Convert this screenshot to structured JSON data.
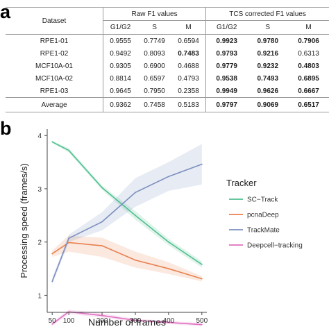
{
  "panel_labels": {
    "a": "a",
    "b": "b"
  },
  "table": {
    "dataset_header": "Dataset",
    "group_raw": "Raw F1 values",
    "group_tcs": "TCS corrected F1 values",
    "sub_headers": [
      "G1/G2",
      "S",
      "M",
      "G1/G2",
      "S",
      "M"
    ],
    "rows": [
      {
        "name": "RPE1-01",
        "values": [
          "0.9555",
          "0.7749",
          "0.6594",
          "0.9923",
          "0.9780",
          "0.7906"
        ],
        "bold": [
          false,
          false,
          false,
          true,
          true,
          true
        ]
      },
      {
        "name": "RPE1-02",
        "values": [
          "0.9492",
          "0.8093",
          "0.7483",
          "0.9793",
          "0.9216",
          "0.6313"
        ],
        "bold": [
          false,
          false,
          true,
          true,
          true,
          false
        ]
      },
      {
        "name": "MCF10A-01",
        "values": [
          "0.9305",
          "0.6900",
          "0.4688",
          "0.9779",
          "0.9232",
          "0.4803"
        ],
        "bold": [
          false,
          false,
          false,
          true,
          true,
          true
        ]
      },
      {
        "name": "MCF10A-02",
        "values": [
          "0.8814",
          "0.6597",
          "0.4793",
          "0.9538",
          "0.7493",
          "0.6895"
        ],
        "bold": [
          false,
          false,
          false,
          true,
          true,
          true
        ]
      },
      {
        "name": "RPE1-03",
        "values": [
          "0.9645",
          "0.7950",
          "0.2358",
          "0.9949",
          "0.9626",
          "0.6667"
        ],
        "bold": [
          false,
          false,
          false,
          true,
          true,
          true
        ]
      }
    ],
    "average": {
      "name": "Average",
      "values": [
        "0.9362",
        "0.7458",
        "0.5183",
        "0.9797",
        "0.9069",
        "0.6517"
      ],
      "bold": [
        false,
        false,
        false,
        true,
        true,
        true
      ]
    }
  },
  "chart_data": {
    "type": "line",
    "title": "",
    "xlabel": "Number of frames",
    "ylabel": "Processing speed (frames/s)",
    "x": [
      50,
      100,
      200,
      300,
      400,
      500
    ],
    "x_ticks": [
      50,
      100,
      200,
      300,
      400,
      500
    ],
    "y_ticks": [
      1,
      2,
      3,
      4
    ],
    "xlim": [
      35,
      515
    ],
    "ylim": [
      0.68,
      4.12
    ],
    "grid": false,
    "legend_title": "Tracker",
    "legend_position": "right",
    "series": [
      {
        "name": "SC−Track",
        "color": "#4fbf8f",
        "values": [
          3.88,
          3.72,
          3.02,
          2.5,
          2.0,
          1.58
        ],
        "band_low": [
          3.86,
          3.68,
          2.98,
          2.42,
          1.94,
          1.52
        ],
        "band_high": [
          3.9,
          3.76,
          3.06,
          2.58,
          2.06,
          1.64
        ]
      },
      {
        "name": "pcnaDeep",
        "color": "#e8804f",
        "values": [
          1.78,
          1.99,
          1.93,
          1.66,
          1.5,
          1.31
        ],
        "band_low": [
          1.72,
          1.82,
          1.72,
          1.52,
          1.4,
          1.26
        ],
        "band_high": [
          1.84,
          2.12,
          2.08,
          1.82,
          1.62,
          1.36
        ]
      },
      {
        "name": "TrackMate",
        "color": "#7b8fbf",
        "values": [
          1.26,
          2.07,
          2.38,
          2.93,
          3.23,
          3.46
        ],
        "band_low": [
          1.2,
          2.0,
          2.22,
          2.66,
          2.96,
          3.08
        ],
        "band_high": [
          1.32,
          2.14,
          2.56,
          3.2,
          3.5,
          3.84
        ]
      },
      {
        "name": "Deepcell−tracking",
        "color": "#e070c0",
        "values": [
          0.46,
          0.69,
          0.62,
          0.53,
          0.49,
          0.45
        ],
        "band_low": [
          0.42,
          0.65,
          0.58,
          0.5,
          0.46,
          0.42
        ],
        "band_high": [
          0.5,
          0.73,
          0.66,
          0.56,
          0.52,
          0.48
        ]
      }
    ]
  }
}
